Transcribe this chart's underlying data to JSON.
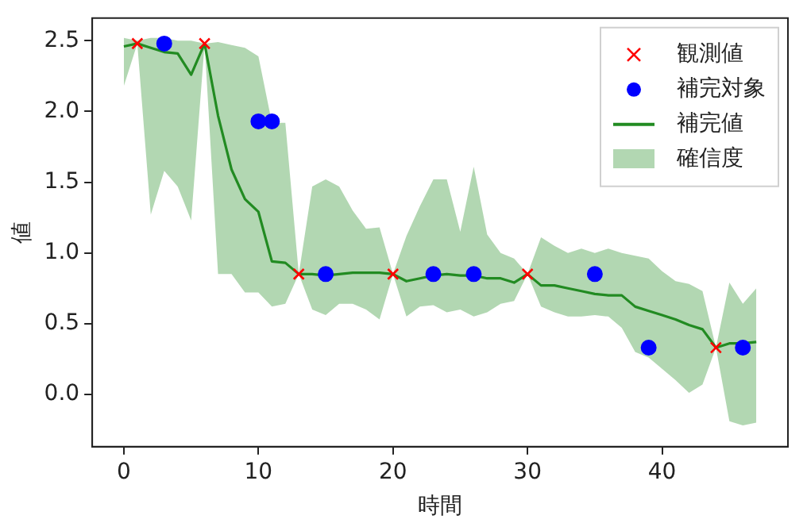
{
  "chart_data": {
    "type": "line",
    "xlabel": "時間",
    "ylabel": "値",
    "annotations": [
      "確信度"
    ],
    "x": [
      0,
      1,
      2,
      3,
      4,
      5,
      6,
      7,
      8,
      9,
      10,
      11,
      12,
      13,
      14,
      15,
      16,
      17,
      18,
      19,
      20,
      21,
      22,
      23,
      24,
      25,
      26,
      27,
      28,
      29,
      30,
      31,
      32,
      33,
      34,
      35,
      36,
      37,
      38,
      39,
      40,
      41,
      42,
      43,
      44,
      45,
      46,
      47
    ],
    "series": [
      {
        "name": "観測値",
        "type": "scatter",
        "marker": "cross",
        "color": "#ff0000",
        "x": [
          1,
          6,
          13,
          20,
          30,
          44
        ],
        "values": [
          2.48,
          2.48,
          0.85,
          0.85,
          0.85,
          0.33
        ]
      },
      {
        "name": "補完対象",
        "type": "scatter",
        "marker": "circle",
        "color": "#0000ff",
        "x": [
          3,
          10,
          11,
          15,
          23,
          26,
          35,
          39,
          46
        ],
        "values": [
          2.48,
          1.93,
          1.93,
          0.85,
          0.85,
          0.85,
          0.85,
          0.33,
          0.33
        ]
      },
      {
        "name": "補完値",
        "marker": "none",
        "line_style": "solid",
        "color": "#228b22",
        "values": [
          2.46,
          2.48,
          2.45,
          2.42,
          2.41,
          2.26,
          2.48,
          1.97,
          1.59,
          1.38,
          1.29,
          0.94,
          0.93,
          0.85,
          0.85,
          0.84,
          0.85,
          0.86,
          0.86,
          0.86,
          0.85,
          0.8,
          0.82,
          0.84,
          0.85,
          0.84,
          0.84,
          0.82,
          0.82,
          0.79,
          0.85,
          0.77,
          0.77,
          0.75,
          0.73,
          0.71,
          0.7,
          0.7,
          0.62,
          0.59,
          0.56,
          0.53,
          0.49,
          0.46,
          0.33,
          0.36,
          0.36,
          0.37
        ],
        "lower": [
          2.18,
          2.48,
          1.27,
          1.58,
          1.47,
          1.23,
          2.48,
          0.85,
          0.85,
          0.72,
          0.72,
          0.62,
          0.64,
          0.85,
          0.6,
          0.56,
          0.64,
          0.64,
          0.6,
          0.53,
          0.85,
          0.55,
          0.62,
          0.63,
          0.58,
          0.6,
          0.55,
          0.58,
          0.64,
          0.66,
          0.85,
          0.62,
          0.58,
          0.55,
          0.55,
          0.56,
          0.55,
          0.47,
          0.3,
          0.26,
          0.18,
          0.1,
          0.01,
          0.07,
          0.33,
          -0.19,
          -0.22,
          -0.2
        ],
        "upper": [
          2.52,
          2.5,
          2.52,
          2.52,
          2.5,
          2.5,
          2.48,
          2.49,
          2.47,
          2.45,
          2.39,
          1.92,
          1.92,
          0.85,
          1.47,
          1.52,
          1.47,
          1.3,
          1.17,
          1.18,
          0.85,
          1.12,
          1.33,
          1.52,
          1.52,
          1.15,
          1.61,
          1.13,
          1.0,
          0.96,
          0.85,
          1.11,
          1.05,
          1.0,
          1.03,
          1.0,
          1.03,
          1.0,
          0.98,
          0.96,
          0.87,
          0.8,
          0.78,
          0.73,
          0.33,
          0.79,
          0.64,
          0.75
        ]
      }
    ],
    "xlim": [
      -2.35,
      49.35
    ],
    "xticks": [
      0,
      10,
      20,
      30,
      40
    ],
    "ylim": [
      -0.37,
      2.66
    ],
    "yticks": [
      {
        "value": 0,
        "label": "0.0"
      },
      {
        "value": 0.5,
        "label": "0.5"
      },
      {
        "value": 1,
        "label": "1.0"
      },
      {
        "value": 1.5,
        "label": "1.5"
      },
      {
        "value": 2,
        "label": "2.0"
      },
      {
        "value": 2.5,
        "label": "2.5"
      }
    ],
    "grid": false,
    "legend": "top right"
  }
}
